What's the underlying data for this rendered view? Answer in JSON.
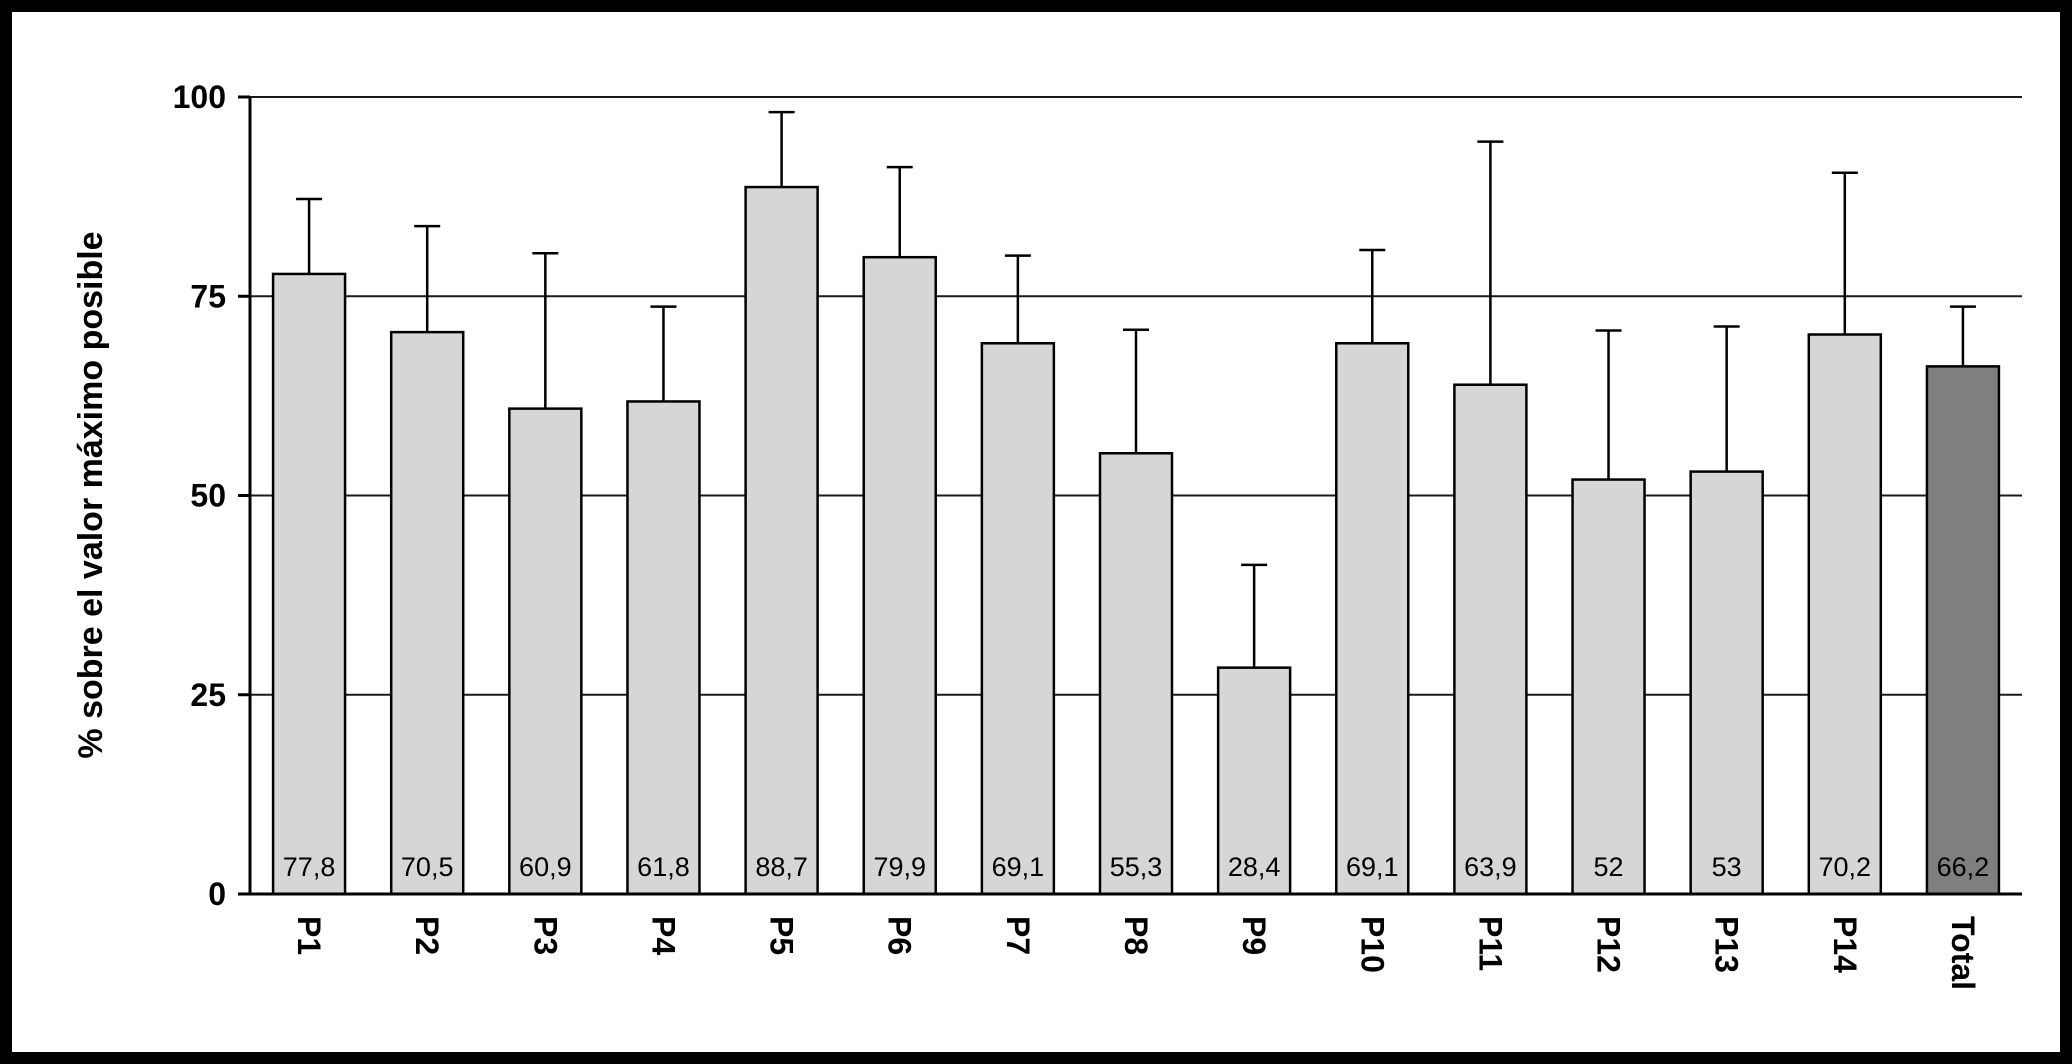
{
  "figure": {
    "background_color": "#ffffff",
    "frame_color": "#000000"
  },
  "chart_data": {
    "type": "bar",
    "categories": [
      "P1",
      "P2",
      "P3",
      "P4",
      "P5",
      "P6",
      "P7",
      "P8",
      "P9",
      "P10",
      "P11",
      "P12",
      "P13",
      "P14",
      "Total"
    ],
    "values": [
      77.8,
      70.5,
      60.9,
      61.8,
      88.7,
      79.9,
      69.1,
      55.3,
      28.4,
      69.1,
      63.9,
      52,
      53,
      70.2,
      66.2
    ],
    "value_labels": [
      "77,8",
      "70,5",
      "60,9",
      "61,8",
      "88,7",
      "79,9",
      "69,1",
      "55,3",
      "28,4",
      "69,1",
      "63,9",
      "52",
      "53",
      "70,2",
      "66,2"
    ],
    "errors_upper": [
      9.4,
      13.3,
      19.5,
      11.9,
      9.4,
      11.3,
      11.0,
      15.5,
      12.9,
      11.7,
      30.5,
      18.7,
      18.2,
      20.3,
      7.5
    ],
    "title": "",
    "xlabel": "",
    "ylabel": "% sobre el valor máximo posible",
    "ylim": [
      0,
      100
    ],
    "yticks": [
      0,
      25,
      50,
      75,
      100
    ],
    "grid": true,
    "legend": "none",
    "bar_color": "#d6d6d6",
    "total_bar_color": "#7f7f7f",
    "highlight_category": "Total"
  }
}
